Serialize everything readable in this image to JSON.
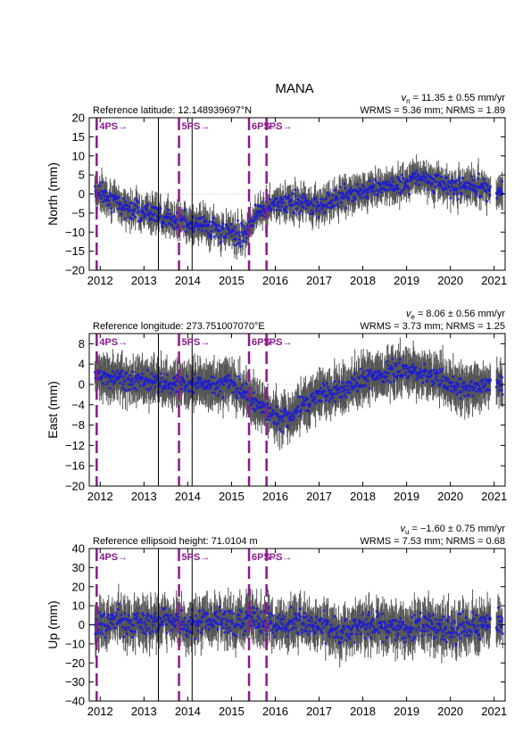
{
  "title": "MANA",
  "colors": {
    "point": "#1a1adb",
    "errorbar": "#444444",
    "event": "#8a1a8a",
    "zero": "#cccccc"
  },
  "xticks": [
    "2012",
    "2013",
    "2014",
    "2015",
    "2016",
    "2017",
    "2018",
    "2019",
    "2020",
    "2021"
  ],
  "events": [
    {
      "label": "4PS→",
      "x": 2011.92
    },
    {
      "label": "5PS→",
      "x": 2013.8
    },
    {
      "label": "6PS→",
      "x": 2015.4
    },
    {
      "label": "7PS→",
      "x": 2015.8
    }
  ],
  "black_lines": [
    2013.33,
    2014.1
  ],
  "chart_data": [
    {
      "type": "scatter",
      "ylabel": "North (mm)",
      "ylim": [
        -20,
        20
      ],
      "xlim": [
        2011.75,
        2021.25
      ],
      "yticks": [
        "20",
        "15",
        "10",
        "5",
        "0",
        "−5",
        "−10",
        "−15",
        "−20"
      ],
      "ref_label": "Reference latitude: 12.148939697°N",
      "vel_prefix": "v",
      "vel_sub": "n",
      "vel_value": " = 11.35 ± 0.55 mm/yr",
      "stats": "WRMS = 5.36 mm; NRMS = 1.89",
      "trend": [
        [
          2011.9,
          1
        ],
        [
          2012.5,
          -3
        ],
        [
          2013.5,
          -6
        ],
        [
          2014.5,
          -9
        ],
        [
          2015.3,
          -11
        ],
        [
          2015.6,
          -4
        ],
        [
          2016.0,
          -3
        ],
        [
          2016.5,
          -2
        ],
        [
          2017.0,
          -3
        ],
        [
          2017.5,
          -1
        ],
        [
          2018.0,
          1
        ],
        [
          2018.5,
          2
        ],
        [
          2019.0,
          3
        ],
        [
          2019.3,
          5
        ],
        [
          2019.6,
          3
        ],
        [
          2020.0,
          2
        ],
        [
          2020.5,
          2
        ],
        [
          2020.9,
          1
        ]
      ]
    },
    {
      "type": "scatter",
      "ylabel": "East (mm)",
      "ylim": [
        -20,
        10
      ],
      "xlim": [
        2011.75,
        2021.25
      ],
      "yticks": [
        "8",
        "4",
        "0",
        "−4",
        "−8",
        "−12",
        "−16",
        "−20"
      ],
      "ref_label": "Reference longitude: 273.751007070°E",
      "vel_prefix": "v",
      "vel_sub": "e",
      "vel_value": " = 8.06 ± 0.56 mm/yr",
      "stats": "WRMS = 3.73 mm; NRMS = 1.25",
      "trend": [
        [
          2011.9,
          2
        ],
        [
          2012.5,
          1
        ],
        [
          2013.5,
          0
        ],
        [
          2014.5,
          0
        ],
        [
          2015.0,
          0
        ],
        [
          2015.5,
          -3
        ],
        [
          2015.8,
          -5
        ],
        [
          2016.1,
          -7
        ],
        [
          2016.5,
          -5
        ],
        [
          2017.0,
          -2
        ],
        [
          2017.5,
          -1
        ],
        [
          2018.0,
          1
        ],
        [
          2018.5,
          2
        ],
        [
          2019.0,
          3
        ],
        [
          2019.5,
          2
        ],
        [
          2020.0,
          0
        ],
        [
          2020.5,
          -1
        ],
        [
          2020.9,
          0
        ]
      ]
    },
    {
      "type": "scatter",
      "ylabel": "Up (mm)",
      "ylim": [
        -40,
        40
      ],
      "xlim": [
        2011.75,
        2021.25
      ],
      "yticks": [
        "40",
        "30",
        "20",
        "10",
        "0",
        "−10",
        "−20",
        "−30",
        "−40"
      ],
      "ref_label": "Reference ellipsoid height: 71.0104 m",
      "vel_prefix": "v",
      "vel_sub": "u",
      "vel_value": " = −1.60 ± 0.75 mm/yr",
      "stats": "WRMS = 7.53 mm; NRMS = 0.68",
      "trend": [
        [
          2011.9,
          0
        ],
        [
          2012.5,
          2
        ],
        [
          2013.0,
          0
        ],
        [
          2013.5,
          3
        ],
        [
          2014.0,
          0
        ],
        [
          2014.5,
          2
        ],
        [
          2015.0,
          0
        ],
        [
          2015.5,
          3
        ],
        [
          2016.0,
          0
        ],
        [
          2016.5,
          1
        ],
        [
          2017.0,
          0
        ],
        [
          2017.5,
          -3
        ],
        [
          2018.0,
          -2
        ],
        [
          2018.5,
          0
        ],
        [
          2019.0,
          -2
        ],
        [
          2019.5,
          0
        ],
        [
          2020.0,
          -3
        ],
        [
          2020.5,
          -1
        ],
        [
          2020.9,
          0
        ]
      ]
    }
  ]
}
